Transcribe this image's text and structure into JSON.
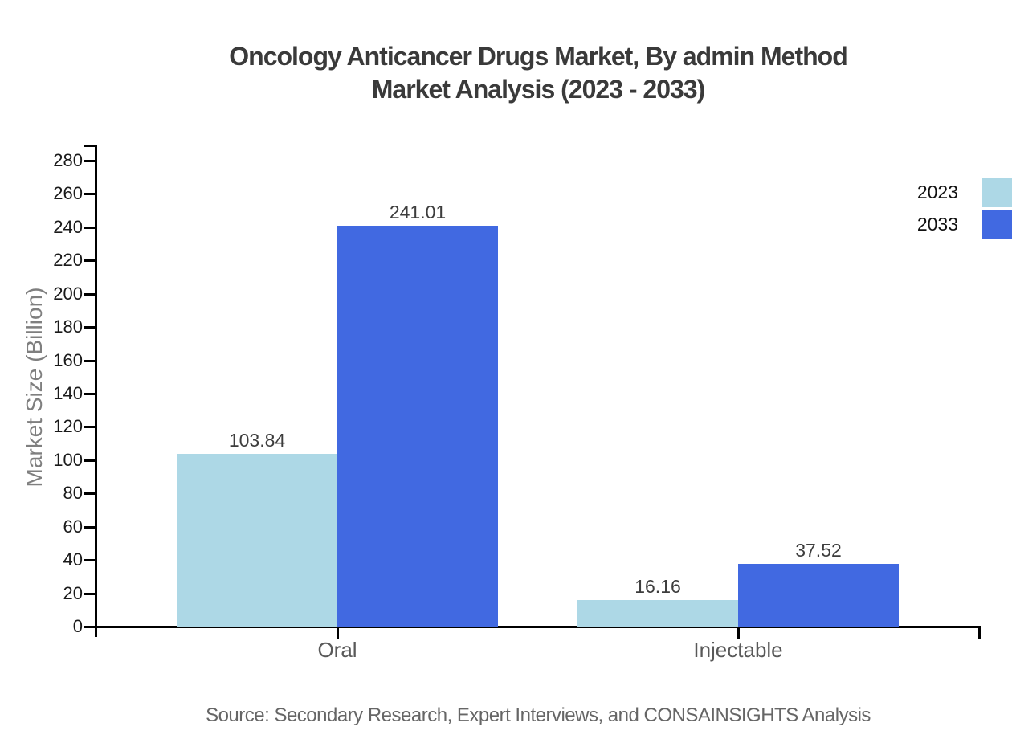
{
  "title": {
    "line1": "Oncology Anticancer Drugs Market, By admin Method",
    "line2": "Market Analysis (2023 - 2033)"
  },
  "chart_data": {
    "type": "bar",
    "categories": [
      "Oral",
      "Injectable"
    ],
    "series": [
      {
        "name": "2023",
        "color": "#ADD8E6",
        "values": [
          103.84,
          16.16
        ]
      },
      {
        "name": "2033",
        "color": "#4169E1",
        "values": [
          241.01,
          37.52
        ]
      }
    ],
    "title": "Oncology Anticancer Drugs Market, By admin Method Market Analysis (2023 - 2033)",
    "xlabel": "",
    "ylabel": "Market Size (Billion)",
    "ylim": [
      0,
      290
    ],
    "ytick_step": 20,
    "ytick_max": 280,
    "grid": false,
    "legend_position": "right-edge",
    "value_labels": [
      "103.84",
      "241.01",
      "16.16",
      "37.52"
    ]
  },
  "footer": {
    "source": "Source: Secondary Research, Expert Interviews, and CONSAINSIGHTS Analysis"
  },
  "colors": {
    "series_2023": "#ADD8E6",
    "series_2033": "#4169E1",
    "axis": "#000000",
    "title_text": "#3a3a3a",
    "ytick_text": "#1a1a1a",
    "category_text": "#595959",
    "ylabel_text": "#7f7f7f",
    "value_label_text": "#3d3d3d",
    "source_text": "#666666"
  }
}
